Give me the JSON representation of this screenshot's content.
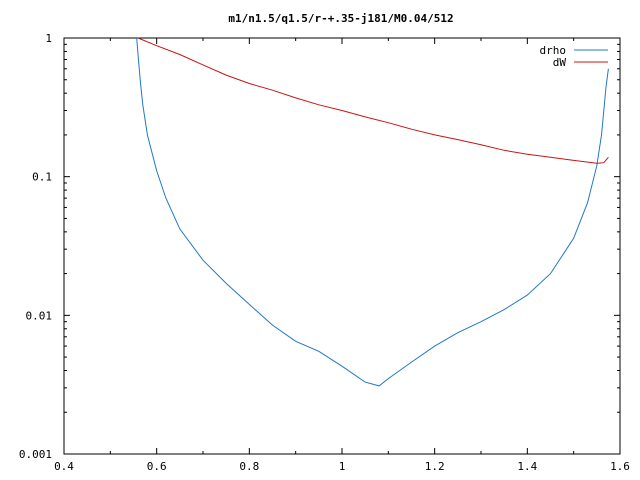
{
  "chart_data": {
    "type": "line",
    "title": "m1/n1.5/q1.5/r-+.35-j181/M0.04/512",
    "xlabel": "",
    "ylabel": "",
    "xlim": [
      0.4,
      1.6
    ],
    "ylim": [
      0.001,
      1
    ],
    "y_scale": "log",
    "grid": false,
    "legend_position": "top-right",
    "x_ticks": [
      "0.4",
      "0.6",
      "0.8",
      "1",
      "1.2",
      "1.4",
      "1.6"
    ],
    "y_ticks": [
      "0.001",
      "0.01",
      "0.1",
      "1"
    ],
    "series": [
      {
        "name": "drho",
        "color": "#1f78c8",
        "x": [
          0.557,
          0.56,
          0.565,
          0.57,
          0.58,
          0.6,
          0.62,
          0.65,
          0.7,
          0.75,
          0.8,
          0.85,
          0.9,
          0.95,
          1.0,
          1.05,
          1.08,
          1.1,
          1.15,
          1.2,
          1.25,
          1.3,
          1.35,
          1.4,
          1.45,
          1.5,
          1.53,
          1.55,
          1.56,
          1.565,
          1.57,
          1.575
        ],
        "y": [
          1.0,
          0.75,
          0.48,
          0.33,
          0.2,
          0.11,
          0.07,
          0.042,
          0.025,
          0.017,
          0.012,
          0.0085,
          0.0065,
          0.0055,
          0.0043,
          0.0033,
          0.0031,
          0.0035,
          0.0046,
          0.006,
          0.0075,
          0.009,
          0.011,
          0.014,
          0.02,
          0.036,
          0.065,
          0.12,
          0.2,
          0.3,
          0.45,
          0.6
        ]
      },
      {
        "name": "dW",
        "color": "#c81414",
        "x": [
          0.56,
          0.6,
          0.65,
          0.7,
          0.75,
          0.8,
          0.85,
          0.9,
          0.95,
          1.0,
          1.05,
          1.1,
          1.15,
          1.2,
          1.25,
          1.3,
          1.35,
          1.4,
          1.45,
          1.5,
          1.55,
          1.565,
          1.575
        ],
        "y": [
          1.0,
          0.88,
          0.76,
          0.64,
          0.54,
          0.47,
          0.42,
          0.37,
          0.33,
          0.3,
          0.27,
          0.245,
          0.22,
          0.2,
          0.185,
          0.17,
          0.155,
          0.145,
          0.138,
          0.131,
          0.125,
          0.126,
          0.138
        ]
      }
    ]
  }
}
